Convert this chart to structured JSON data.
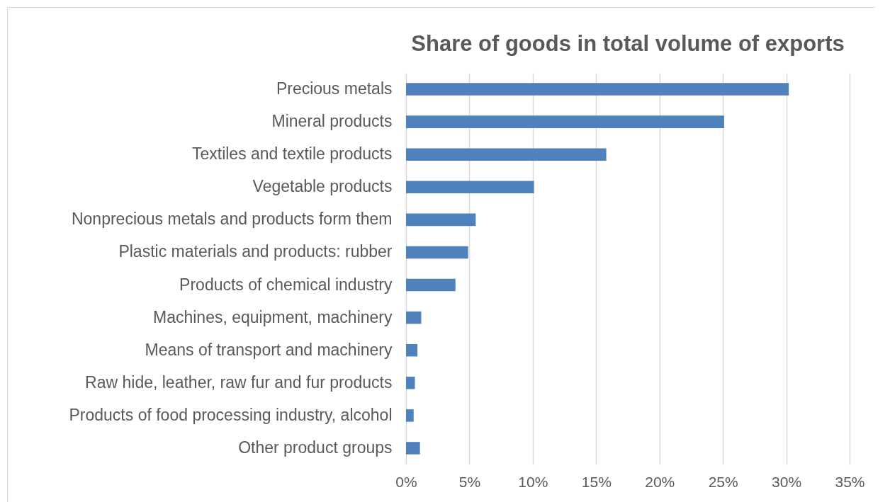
{
  "chart_data": {
    "type": "bar",
    "orientation": "horizontal",
    "title": "Share of goods in total volume of exports",
    "categories": [
      "Precious metals",
      "Mineral products",
      "Textiles and textile products",
      "Vegetable products",
      "Nonprecious metals and products form them",
      "Plastic materials and products: rubber",
      "Products of chemical industry",
      "Machines, equipment, machinery",
      "Means of transport and machinery",
      "Raw hide, leather, raw fur and fur products",
      "Products of food processing industry, alcohol",
      "Other product groups"
    ],
    "values": [
      30.2,
      25.1,
      15.8,
      10.1,
      5.5,
      4.9,
      3.9,
      1.2,
      0.9,
      0.7,
      0.6,
      1.1
    ],
    "color": "#4f81bd",
    "xlim": [
      0,
      35
    ],
    "xticks": [
      {
        "value": 0,
        "label": "0%"
      },
      {
        "value": 5,
        "label": "5%"
      },
      {
        "value": 10,
        "label": "10%"
      },
      {
        "value": 15,
        "label": "15%"
      },
      {
        "value": 20,
        "label": "20%"
      },
      {
        "value": 25,
        "label": "25%"
      },
      {
        "value": 30,
        "label": "30%"
      },
      {
        "value": 35,
        "label": "35%"
      }
    ],
    "grid": "x"
  }
}
